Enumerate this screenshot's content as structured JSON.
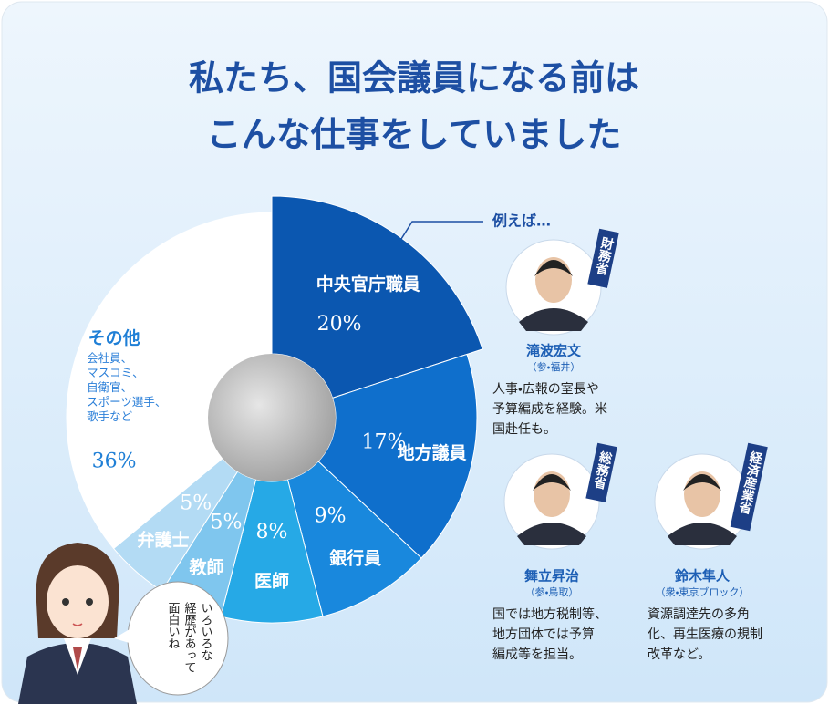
{
  "chart_data": {
    "type": "pie",
    "title": [
      "私たち、国会議員になる前は",
      "こんな仕事をしていました"
    ],
    "categories": [
      "中央官庁職員",
      "地方議員",
      "銀行員",
      "医師",
      "教師",
      "弁護士",
      "その他"
    ],
    "values": [
      20,
      17,
      9,
      8,
      5,
      5,
      36
    ],
    "value_labels": [
      "20%",
      "17%",
      "9%",
      "8%",
      "5%",
      "5%",
      "36%"
    ],
    "colors": [
      "#0b57b0",
      "#0f6fcc",
      "#1988dd",
      "#26a9e6",
      "#7fc6ee",
      "#b3dbf4",
      "#ffffff"
    ],
    "other_note": [
      "会社員、",
      "マスコミ、",
      "自衛官、",
      "スポーツ選手、",
      "歌手など"
    ]
  },
  "examples": {
    "heading": "例えば…",
    "people": [
      {
        "ministry": "財務省",
        "name": "滝波宏文",
        "district": "（参・福井）",
        "description": [
          "人事・広報の室長や",
          "予算編成を経験。米",
          "国赴任も。"
        ]
      },
      {
        "ministry": "総務省",
        "name": "舞立昇治",
        "district": "（参・鳥取）",
        "description": [
          "国では地方税制等、",
          "地方団体では予算",
          "編成等を担当。"
        ]
      },
      {
        "ministry": "経済産業省",
        "name": "鈴木隼人",
        "district": "（衆・東京ブロック）",
        "description": [
          "資源調達先の多角",
          "化、再生医療の規制",
          "改革など。"
        ]
      }
    ]
  },
  "speech": [
    "いろいろな",
    "経歴があって",
    "面白いね"
  ]
}
